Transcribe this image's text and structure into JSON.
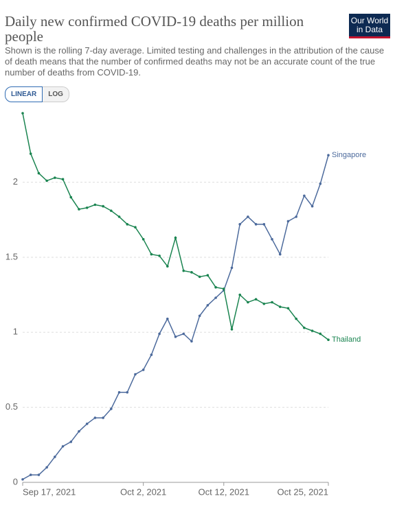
{
  "logo": [
    "Our World",
    "in Data"
  ],
  "chart_data": {
    "type": "line",
    "title": "Daily new confirmed COVID-19 deaths per million people",
    "subtitle": "Shown is the rolling 7-day average. Limited testing and challenges in the attribution of the cause of death means that the number of confirmed deaths may not be an accurate count of the true number of deaths from COVID-19.",
    "scale_options": [
      "LINEAR",
      "LOG"
    ],
    "log_scale": false,
    "grid": true,
    "x": [
      "2021-09-17",
      "2021-09-18",
      "2021-09-19",
      "2021-09-20",
      "2021-09-21",
      "2021-09-22",
      "2021-09-23",
      "2021-09-24",
      "2021-09-25",
      "2021-09-26",
      "2021-09-27",
      "2021-09-28",
      "2021-09-29",
      "2021-09-30",
      "2021-10-01",
      "2021-10-02",
      "2021-10-03",
      "2021-10-04",
      "2021-10-05",
      "2021-10-06",
      "2021-10-07",
      "2021-10-08",
      "2021-10-09",
      "2021-10-10",
      "2021-10-11",
      "2021-10-12",
      "2021-10-13",
      "2021-10-14",
      "2021-10-15",
      "2021-10-16",
      "2021-10-17",
      "2021-10-18",
      "2021-10-19",
      "2021-10-20",
      "2021-10-21",
      "2021-10-22",
      "2021-10-23",
      "2021-10-24",
      "2021-10-25"
    ],
    "xlim": [
      "2021-09-17",
      "2021-10-25"
    ],
    "xticks": [
      {
        "value": "2021-09-17",
        "label": "Sep 17, 2021"
      },
      {
        "value": "2021-10-02",
        "label": "Oct 2, 2021"
      },
      {
        "value": "2021-10-12",
        "label": "Oct 12, 2021"
      },
      {
        "value": "2021-10-25",
        "label": "Oct 25, 2021"
      }
    ],
    "ylim": [
      0,
      2.46
    ],
    "yticks": [
      0,
      0.5,
      1,
      1.5,
      2
    ],
    "series": [
      {
        "name": "Singapore",
        "color": "#4c6a9c",
        "values": [
          0.02,
          0.05,
          0.05,
          0.1,
          0.17,
          0.24,
          0.27,
          0.34,
          0.39,
          0.43,
          0.43,
          0.49,
          0.6,
          0.6,
          0.72,
          0.75,
          0.85,
          0.99,
          1.09,
          0.97,
          0.99,
          0.94,
          1.11,
          1.18,
          1.23,
          1.28,
          1.43,
          1.72,
          1.77,
          1.72,
          1.72,
          1.62,
          1.52,
          1.74,
          1.77,
          1.91,
          1.84,
          1.99,
          2.18
        ]
      },
      {
        "name": "Thailand",
        "color": "#1a8450",
        "values": [
          2.46,
          2.19,
          2.06,
          2.01,
          2.03,
          2.02,
          1.9,
          1.82,
          1.83,
          1.85,
          1.84,
          1.81,
          1.77,
          1.72,
          1.7,
          1.62,
          1.52,
          1.51,
          1.44,
          1.63,
          1.41,
          1.4,
          1.37,
          1.38,
          1.3,
          1.29,
          1.02,
          1.25,
          1.2,
          1.22,
          1.19,
          1.2,
          1.17,
          1.16,
          1.09,
          1.03,
          1.01,
          0.99,
          0.95
        ]
      }
    ]
  }
}
